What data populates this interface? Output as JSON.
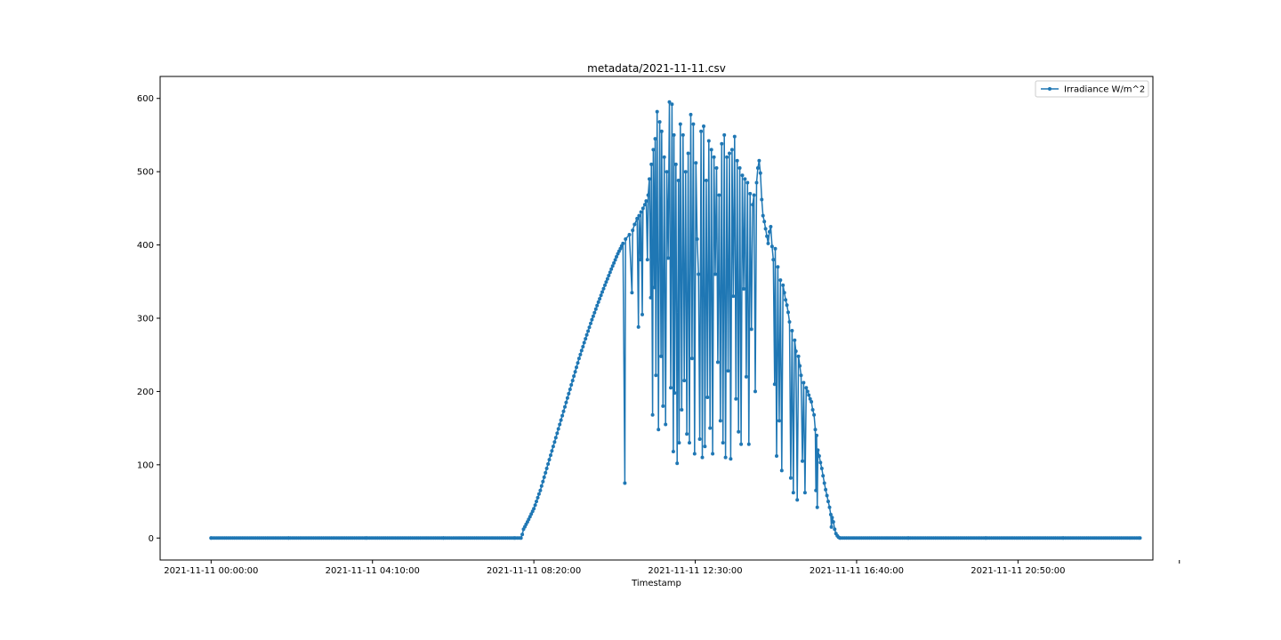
{
  "chart_data": {
    "type": "line",
    "title": "metadata/2021-11-11.csv",
    "xlabel": "Timestamp",
    "ylabel": "",
    "ylim": [
      -30,
      630
    ],
    "xlim_minutes": [
      -79,
      1459
    ],
    "x_tick_labels": [
      "2021-11-11 00:00:00",
      "2021-11-11 04:10:00",
      "2021-11-11 08:20:00",
      "2021-11-11 12:30:00",
      "2021-11-11 16:40:00",
      "2021-11-11 20:50:00"
    ],
    "y_ticks": [
      0,
      100,
      200,
      300,
      400,
      500,
      600
    ],
    "grid": false,
    "legend_position": "top-right",
    "series": [
      {
        "name": "Irradiance W/m^2",
        "color": "#1f77b4",
        "marker": "circle",
        "points": [
          [
            "00:00",
            0
          ],
          [
            "02:00",
            0
          ],
          [
            "04:00",
            0
          ],
          [
            "06:00",
            0
          ],
          [
            "07:50",
            0
          ],
          [
            "08:00",
            0
          ],
          [
            "08:02",
            5
          ],
          [
            "08:04",
            12
          ],
          [
            "08:10",
            22
          ],
          [
            "08:20",
            40
          ],
          [
            "08:30",
            65
          ],
          [
            "08:40",
            95
          ],
          [
            "08:50",
            125
          ],
          [
            "09:00",
            155
          ],
          [
            "09:10",
            185
          ],
          [
            "09:20",
            215
          ],
          [
            "09:30",
            245
          ],
          [
            "09:40",
            272
          ],
          [
            "09:50",
            298
          ],
          [
            "10:00",
            322
          ],
          [
            "10:10",
            345
          ],
          [
            "10:20",
            367
          ],
          [
            "10:30",
            388
          ],
          [
            "10:38",
            402
          ],
          [
            "10:41",
            75
          ],
          [
            "10:42",
            408
          ],
          [
            "10:48",
            414
          ],
          [
            "10:52",
            335
          ],
          [
            "10:53",
            420
          ],
          [
            "10:56",
            428
          ],
          [
            "11:00",
            436
          ],
          [
            "11:02",
            288
          ],
          [
            "11:03",
            440
          ],
          [
            "11:05",
            380
          ],
          [
            "11:06",
            445
          ],
          [
            "11:08",
            305
          ],
          [
            "11:09",
            450
          ],
          [
            "11:12",
            455
          ],
          [
            "11:14",
            460
          ],
          [
            "11:16",
            380
          ],
          [
            "11:17",
            468
          ],
          [
            "11:19",
            490
          ],
          [
            "11:21",
            328
          ],
          [
            "11:22",
            510
          ],
          [
            "11:24",
            168
          ],
          [
            "11:25",
            530
          ],
          [
            "11:27",
            342
          ],
          [
            "11:28",
            545
          ],
          [
            "11:29",
            222
          ],
          [
            "11:31",
            582
          ],
          [
            "11:33",
            148
          ],
          [
            "11:35",
            568
          ],
          [
            "11:37",
            248
          ],
          [
            "11:38",
            555
          ],
          [
            "11:40",
            180
          ],
          [
            "11:42",
            520
          ],
          [
            "11:44",
            155
          ],
          [
            "11:46",
            500
          ],
          [
            "11:48",
            382
          ],
          [
            "11:50",
            595
          ],
          [
            "11:52",
            205
          ],
          [
            "11:54",
            592
          ],
          [
            "11:56",
            118
          ],
          [
            "11:57",
            550
          ],
          [
            "11:58",
            198
          ],
          [
            "12:00",
            510
          ],
          [
            "12:02",
            102
          ],
          [
            "12:04",
            488
          ],
          [
            "12:05",
            130
          ],
          [
            "12:07",
            565
          ],
          [
            "12:09",
            175
          ],
          [
            "12:11",
            550
          ],
          [
            "12:13",
            215
          ],
          [
            "12:15",
            500
          ],
          [
            "12:17",
            142
          ],
          [
            "12:19",
            525
          ],
          [
            "12:21",
            130
          ],
          [
            "12:23",
            578
          ],
          [
            "12:25",
            245
          ],
          [
            "12:27",
            565
          ],
          [
            "12:29",
            115
          ],
          [
            "12:31",
            512
          ],
          [
            "12:33",
            408
          ],
          [
            "12:35",
            360
          ],
          [
            "12:37",
            135
          ],
          [
            "12:39",
            555
          ],
          [
            "12:41",
            110
          ],
          [
            "12:43",
            562
          ],
          [
            "12:45",
            125
          ],
          [
            "12:47",
            488
          ],
          [
            "12:49",
            192
          ],
          [
            "12:51",
            542
          ],
          [
            "12:53",
            150
          ],
          [
            "12:55",
            530
          ],
          [
            "12:57",
            115
          ],
          [
            "12:59",
            520
          ],
          [
            "13:01",
            360
          ],
          [
            "13:03",
            505
          ],
          [
            "13:05",
            240
          ],
          [
            "13:07",
            468
          ],
          [
            "13:09",
            160
          ],
          [
            "13:11",
            538
          ],
          [
            "13:13",
            130
          ],
          [
            "13:15",
            550
          ],
          [
            "13:17",
            110
          ],
          [
            "13:19",
            520
          ],
          [
            "13:21",
            228
          ],
          [
            "13:23",
            525
          ],
          [
            "13:25",
            108
          ],
          [
            "13:27",
            530
          ],
          [
            "13:29",
            330
          ],
          [
            "13:31",
            548
          ],
          [
            "13:33",
            190
          ],
          [
            "13:35",
            515
          ],
          [
            "13:37",
            145
          ],
          [
            "13:39",
            505
          ],
          [
            "13:41",
            128
          ],
          [
            "13:43",
            495
          ],
          [
            "13:45",
            340
          ],
          [
            "13:47",
            490
          ],
          [
            "13:49",
            220
          ],
          [
            "13:51",
            485
          ],
          [
            "13:53",
            128
          ],
          [
            "13:55",
            470
          ],
          [
            "13:57",
            285
          ],
          [
            "13:59",
            455
          ],
          [
            "14:01",
            468
          ],
          [
            "14:03",
            200
          ],
          [
            "14:05",
            485
          ],
          [
            "14:07",
            505
          ],
          [
            "14:09",
            515
          ],
          [
            "14:11",
            498
          ],
          [
            "14:13",
            462
          ],
          [
            "14:15",
            440
          ],
          [
            "14:17",
            432
          ],
          [
            "14:19",
            422
          ],
          [
            "14:21",
            412
          ],
          [
            "14:23",
            402
          ],
          [
            "14:25",
            418
          ],
          [
            "14:27",
            425
          ],
          [
            "14:29",
            398
          ],
          [
            "14:31",
            380
          ],
          [
            "14:33",
            210
          ],
          [
            "14:34",
            395
          ],
          [
            "14:36",
            112
          ],
          [
            "14:38",
            370
          ],
          [
            "14:40",
            160
          ],
          [
            "14:42",
            352
          ],
          [
            "14:44",
            92
          ],
          [
            "14:46",
            345
          ],
          [
            "14:48",
            335
          ],
          [
            "14:50",
            325
          ],
          [
            "14:52",
            318
          ],
          [
            "14:54",
            308
          ],
          [
            "14:56",
            295
          ],
          [
            "14:58",
            82
          ],
          [
            "15:00",
            283
          ],
          [
            "15:02",
            62
          ],
          [
            "15:04",
            270
          ],
          [
            "15:06",
            255
          ],
          [
            "15:08",
            52
          ],
          [
            "15:10",
            248
          ],
          [
            "15:12",
            235
          ],
          [
            "15:14",
            222
          ],
          [
            "15:16",
            105
          ],
          [
            "15:18",
            212
          ],
          [
            "15:20",
            62
          ],
          [
            "15:22",
            205
          ],
          [
            "15:24",
            200
          ],
          [
            "15:26",
            195
          ],
          [
            "15:28",
            190
          ],
          [
            "15:30",
            186
          ],
          [
            "15:32",
            175
          ],
          [
            "15:34",
            168
          ],
          [
            "15:36",
            148
          ],
          [
            "15:37",
            65
          ],
          [
            "15:38",
            140
          ],
          [
            "15:39",
            42
          ],
          [
            "15:40",
            120
          ],
          [
            "15:42",
            112
          ],
          [
            "15:44",
            103
          ],
          [
            "15:46",
            95
          ],
          [
            "15:48",
            85
          ],
          [
            "15:50",
            75
          ],
          [
            "15:52",
            66
          ],
          [
            "15:54",
            58
          ],
          [
            "15:56",
            50
          ],
          [
            "15:58",
            42
          ],
          [
            "16:00",
            32
          ],
          [
            "16:01",
            15
          ],
          [
            "16:02",
            28
          ],
          [
            "16:04",
            22
          ],
          [
            "16:06",
            12
          ],
          [
            "16:08",
            6
          ],
          [
            "16:10",
            3
          ],
          [
            "16:12",
            1
          ],
          [
            "16:14",
            0
          ],
          [
            "18:00",
            0
          ],
          [
            "20:00",
            0
          ],
          [
            "22:00",
            0
          ],
          [
            "23:59",
            0
          ]
        ]
      }
    ]
  }
}
